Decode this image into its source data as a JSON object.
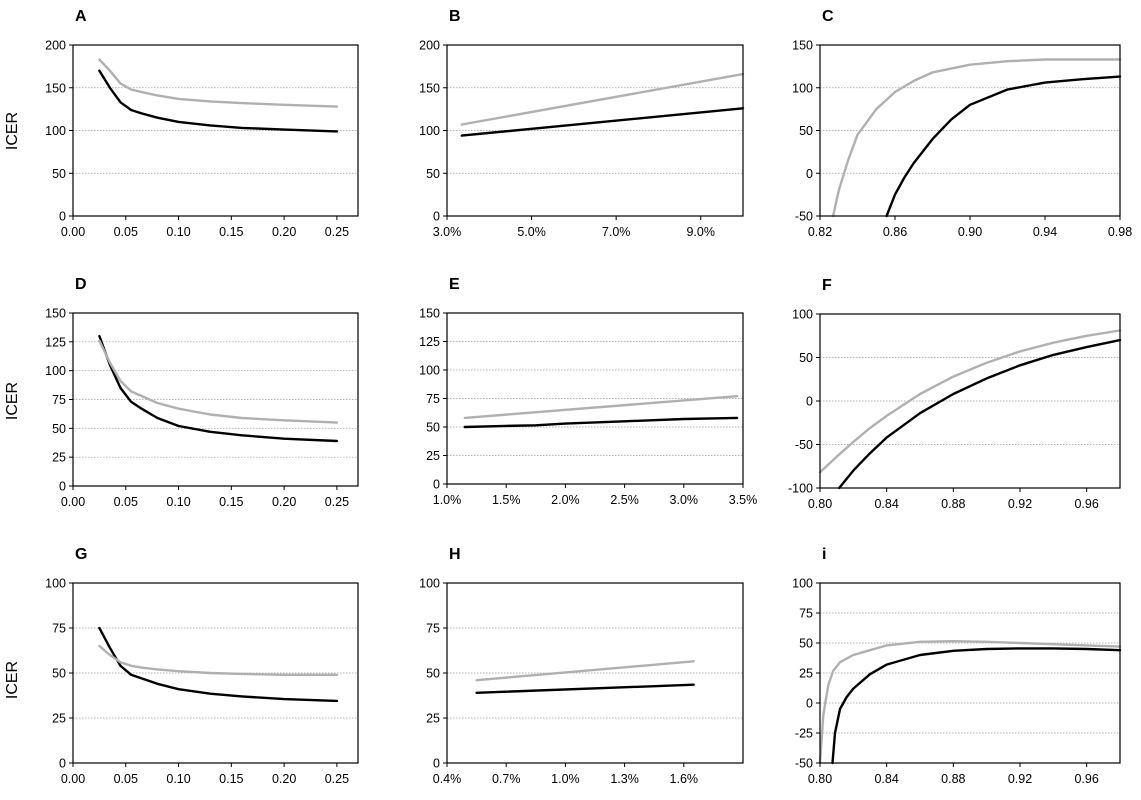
{
  "y_axis_label": "ICER",
  "colors": {
    "series_1": "#000000",
    "series_2": "#b0b0b0",
    "grid": "#9a9a9a"
  },
  "chart_data": [
    {
      "panel": "A",
      "type": "line",
      "xlabel": "",
      "ylabel": "ICER",
      "xlim": [
        0.0,
        0.27
      ],
      "ylim": [
        0,
        200
      ],
      "grid": true,
      "x_ticks": [
        0,
        0.05,
        0.1,
        0.15,
        0.2,
        0.25
      ],
      "x_tick_labels": [
        "0.00",
        "0.05",
        "0.10",
        "0.15",
        "0.20",
        "0.25"
      ],
      "y_ticks": [
        0,
        50,
        100,
        150,
        200
      ],
      "y_tick_labels": [
        "0",
        "50",
        "100",
        "150",
        "200"
      ],
      "series": [
        {
          "color": "#000000",
          "x": [
            0.025,
            0.035,
            0.045,
            0.055,
            0.065,
            0.08,
            0.1,
            0.13,
            0.16,
            0.2,
            0.25
          ],
          "y": [
            170,
            150,
            133,
            124,
            120,
            115,
            110,
            106,
            103,
            101,
            99
          ]
        },
        {
          "color": "#b0b0b0",
          "x": [
            0.025,
            0.035,
            0.045,
            0.055,
            0.065,
            0.08,
            0.1,
            0.13,
            0.16,
            0.2,
            0.25
          ],
          "y": [
            183,
            170,
            155,
            148,
            145,
            141,
            137,
            134,
            132,
            130,
            128
          ]
        }
      ]
    },
    {
      "panel": "B",
      "type": "line",
      "xlabel": "",
      "ylabel": "",
      "xlim": [
        0.03,
        0.1
      ],
      "ylim": [
        0,
        200
      ],
      "grid": true,
      "x_ticks": [
        0.03,
        0.05,
        0.07,
        0.09
      ],
      "x_tick_labels": [
        "3.0%",
        "5.0%",
        "7.0%",
        "9.0%"
      ],
      "y_ticks": [
        0,
        50,
        100,
        150,
        200
      ],
      "y_tick_labels": [
        "0",
        "50",
        "100",
        "150",
        "200"
      ],
      "series": [
        {
          "color": "#000000",
          "x": [
            0.0335,
            0.1
          ],
          "y": [
            94,
            126
          ]
        },
        {
          "color": "#b0b0b0",
          "x": [
            0.0335,
            0.1
          ],
          "y": [
            107,
            166
          ]
        }
      ]
    },
    {
      "panel": "C",
      "type": "line",
      "xlabel": "",
      "ylabel": "",
      "xlim": [
        0.82,
        0.98
      ],
      "ylim": [
        -50,
        150
      ],
      "grid": true,
      "x_ticks": [
        0.82,
        0.86,
        0.9,
        0.94,
        0.98
      ],
      "x_tick_labels": [
        "0.82",
        "0.86",
        "0.90",
        "0.94",
        "0.98"
      ],
      "y_ticks": [
        -50,
        0,
        50,
        100,
        150
      ],
      "y_tick_labels": [
        "-50",
        "0",
        "50",
        "100",
        "150"
      ],
      "series": [
        {
          "color": "#000000",
          "x": [
            0.8555,
            0.86,
            0.865,
            0.87,
            0.88,
            0.89,
            0.9,
            0.92,
            0.94,
            0.96,
            0.98
          ],
          "y": [
            -50,
            -25,
            -5,
            12,
            40,
            63,
            80,
            98,
            106,
            110,
            113
          ]
        },
        {
          "color": "#b0b0b0",
          "x": [
            0.827,
            0.83,
            0.835,
            0.84,
            0.85,
            0.86,
            0.87,
            0.88,
            0.9,
            0.92,
            0.94,
            0.96,
            0.98
          ],
          "y": [
            -50,
            -20,
            15,
            45,
            75,
            95,
            108,
            118,
            127,
            131,
            133,
            133,
            133
          ]
        }
      ]
    },
    {
      "panel": "D",
      "type": "line",
      "xlabel": "",
      "ylabel": "ICER",
      "xlim": [
        0.0,
        0.27
      ],
      "ylim": [
        0,
        150
      ],
      "grid": true,
      "x_ticks": [
        0,
        0.05,
        0.1,
        0.15,
        0.2,
        0.25
      ],
      "x_tick_labels": [
        "0.00",
        "0.05",
        "0.10",
        "0.15",
        "0.20",
        "0.25"
      ],
      "y_ticks": [
        0,
        25,
        50,
        75,
        100,
        125,
        150
      ],
      "y_tick_labels": [
        "0",
        "25",
        "50",
        "75",
        "100",
        "125",
        "150"
      ],
      "series": [
        {
          "color": "#000000",
          "x": [
            0.025,
            0.035,
            0.045,
            0.055,
            0.065,
            0.08,
            0.1,
            0.13,
            0.16,
            0.2,
            0.25
          ],
          "y": [
            130,
            105,
            85,
            73,
            67,
            59,
            52,
            47,
            44,
            41,
            39
          ]
        },
        {
          "color": "#b0b0b0",
          "x": [
            0.025,
            0.035,
            0.045,
            0.055,
            0.065,
            0.08,
            0.1,
            0.13,
            0.16,
            0.2,
            0.25
          ],
          "y": [
            126,
            107,
            91,
            82,
            78,
            72,
            67,
            62,
            59,
            57,
            55
          ]
        }
      ]
    },
    {
      "panel": "E",
      "type": "line",
      "xlabel": "",
      "ylabel": "",
      "xlim": [
        0.01,
        0.035
      ],
      "ylim": [
        0,
        150
      ],
      "grid": true,
      "x_ticks": [
        0.01,
        0.015,
        0.02,
        0.025,
        0.03,
        0.035
      ],
      "x_tick_labels": [
        "1.0%",
        "1.5%",
        "2.0%",
        "2.5%",
        "3.0%",
        "3.5%"
      ],
      "y_ticks": [
        0,
        25,
        50,
        75,
        100,
        125,
        150
      ],
      "y_tick_labels": [
        "0",
        "25",
        "50",
        "75",
        "100",
        "125",
        "150"
      ],
      "series": [
        {
          "color": "#000000",
          "x": [
            0.0115,
            0.015,
            0.0175,
            0.02,
            0.025,
            0.03,
            0.0345
          ],
          "y": [
            50,
            51,
            51.5,
            53,
            55,
            57,
            58
          ]
        },
        {
          "color": "#b0b0b0",
          "x": [
            0.0115,
            0.0345
          ],
          "y": [
            58,
            77
          ]
        }
      ]
    },
    {
      "panel": "F",
      "type": "line",
      "xlabel": "",
      "ylabel": "",
      "xlim": [
        0.8,
        0.98
      ],
      "ylim": [
        -100,
        100
      ],
      "grid": true,
      "x_ticks": [
        0.8,
        0.84,
        0.88,
        0.92,
        0.96
      ],
      "x_tick_labels": [
        "0.80",
        "0.84",
        "0.88",
        "0.92",
        "0.96"
      ],
      "y_ticks": [
        -100,
        -50,
        0,
        50,
        100
      ],
      "y_tick_labels": [
        "-100",
        "-50",
        "0",
        "50",
        "100"
      ],
      "series": [
        {
          "color": "#000000",
          "x": [
            0.8115,
            0.82,
            0.83,
            0.84,
            0.86,
            0.88,
            0.9,
            0.92,
            0.94,
            0.96,
            0.98
          ],
          "y": [
            -100,
            -80,
            -60,
            -42,
            -14,
            8,
            26,
            41,
            53,
            62,
            70
          ]
        },
        {
          "color": "#b0b0b0",
          "x": [
            0.8,
            0.81,
            0.82,
            0.83,
            0.84,
            0.86,
            0.88,
            0.9,
            0.92,
            0.94,
            0.96,
            0.98
          ],
          "y": [
            -82,
            -64,
            -47,
            -31,
            -17,
            8,
            28,
            44,
            57,
            67,
            75,
            81
          ]
        }
      ]
    },
    {
      "panel": "G",
      "type": "line",
      "xlabel": "",
      "ylabel": "ICER",
      "xlim": [
        0.0,
        0.27
      ],
      "ylim": [
        0,
        100
      ],
      "grid": true,
      "x_ticks": [
        0,
        0.05,
        0.1,
        0.15,
        0.2,
        0.25
      ],
      "x_tick_labels": [
        "0.00",
        "0.05",
        "0.10",
        "0.15",
        "0.20",
        "0.25"
      ],
      "y_ticks": [
        0,
        25,
        50,
        75,
        100
      ],
      "y_tick_labels": [
        "0",
        "25",
        "50",
        "75",
        "100"
      ],
      "series": [
        {
          "color": "#000000",
          "x": [
            0.025,
            0.035,
            0.045,
            0.055,
            0.065,
            0.08,
            0.1,
            0.13,
            0.16,
            0.2,
            0.25
          ],
          "y": [
            75,
            64,
            54,
            49,
            47,
            44,
            41,
            38.5,
            37,
            35.5,
            34.5
          ]
        },
        {
          "color": "#b0b0b0",
          "x": [
            0.025,
            0.035,
            0.045,
            0.055,
            0.065,
            0.08,
            0.1,
            0.13,
            0.16,
            0.2,
            0.25
          ],
          "y": [
            65,
            60,
            56,
            54,
            53,
            52,
            51,
            50,
            49.5,
            49,
            49
          ]
        }
      ]
    },
    {
      "panel": "H",
      "type": "line",
      "xlabel": "",
      "ylabel": "",
      "xlim": [
        0.004,
        0.019
      ],
      "ylim": [
        0,
        100
      ],
      "grid": true,
      "x_ticks": [
        0.004,
        0.007,
        0.01,
        0.013,
        0.016
      ],
      "x_tick_labels": [
        "0.4%",
        "0.7%",
        "1.0%",
        "1.3%",
        "1.6%"
      ],
      "y_ticks": [
        0,
        25,
        50,
        75,
        100
      ],
      "y_tick_labels": [
        "0",
        "25",
        "50",
        "75",
        "100"
      ],
      "series": [
        {
          "color": "#000000",
          "x": [
            0.0055,
            0.0165
          ],
          "y": [
            39,
            43.5
          ]
        },
        {
          "color": "#b0b0b0",
          "x": [
            0.0055,
            0.0165
          ],
          "y": [
            46,
            56.5
          ]
        }
      ]
    },
    {
      "panel": "i",
      "type": "line",
      "xlabel": "",
      "ylabel": "",
      "xlim": [
        0.8,
        0.98
      ],
      "ylim": [
        -50,
        100
      ],
      "grid": true,
      "x_ticks": [
        0.8,
        0.84,
        0.88,
        0.92,
        0.96
      ],
      "x_tick_labels": [
        "0.80",
        "0.84",
        "0.88",
        "0.92",
        "0.96"
      ],
      "y_ticks": [
        -50,
        -25,
        0,
        25,
        50,
        75,
        100
      ],
      "y_tick_labels": [
        "-50",
        "-25",
        "0",
        "25",
        "50",
        "75",
        "100"
      ],
      "series": [
        {
          "color": "#000000",
          "x": [
            0.8075,
            0.809,
            0.812,
            0.816,
            0.82,
            0.83,
            0.84,
            0.86,
            0.88,
            0.9,
            0.92,
            0.94,
            0.96,
            0.98
          ],
          "y": [
            -50,
            -25,
            -5,
            5,
            12,
            24,
            32,
            40,
            43.5,
            45,
            45.5,
            45.5,
            45,
            44
          ]
        },
        {
          "color": "#b0b0b0",
          "x": [
            0.8,
            0.802,
            0.805,
            0.808,
            0.812,
            0.82,
            0.83,
            0.84,
            0.86,
            0.88,
            0.9,
            0.92,
            0.94,
            0.96,
            0.98
          ],
          "y": [
            -50,
            -10,
            15,
            27,
            34,
            40,
            44,
            48,
            51,
            51.5,
            51,
            50,
            49,
            48,
            47
          ]
        }
      ]
    }
  ]
}
